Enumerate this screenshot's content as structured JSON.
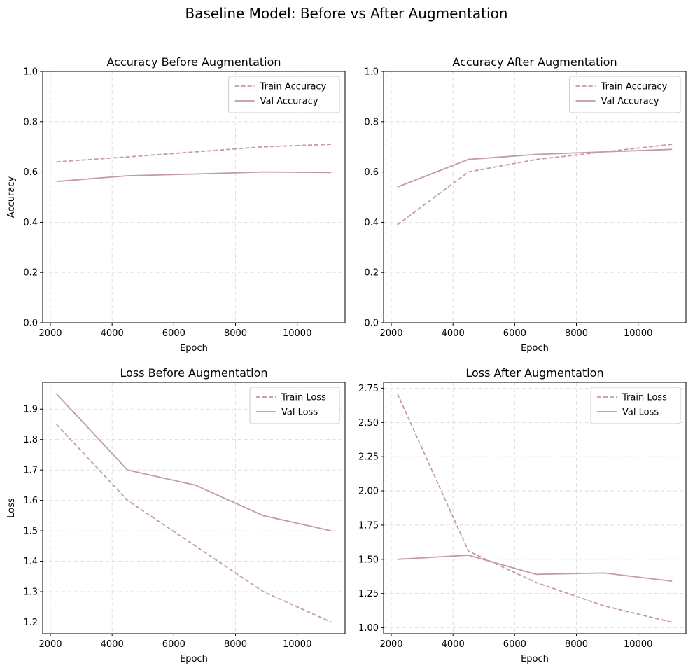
{
  "figure": {
    "title": "Baseline Model: Before vs After Augmentation"
  },
  "colors": {
    "series": "#c39aa6",
    "grid": "#d9d9d9",
    "axis": "#000000",
    "legend_border": "#cccccc"
  },
  "chart_data": [
    {
      "type": "line",
      "title": "Accuracy Before Augmentation",
      "xlabel": "Epoch",
      "ylabel": "Accuracy",
      "xlim": [
        1750,
        11550
      ],
      "ylim": [
        0,
        1
      ],
      "xticks": [
        2000,
        4000,
        6000,
        8000,
        10000
      ],
      "yticks": [
        0.0,
        0.2,
        0.4,
        0.6,
        0.8,
        1.0
      ],
      "ytick_labels": [
        "0.0",
        "0.2",
        "0.4",
        "0.6",
        "0.8",
        "1.0"
      ],
      "grid": true,
      "legend": "top-right",
      "series": [
        {
          "name": "Train Accuracy",
          "style": "dashed",
          "x": [
            2200,
            4500,
            6700,
            8900,
            11100
          ],
          "y": [
            0.64,
            0.66,
            0.68,
            0.7,
            0.71
          ]
        },
        {
          "name": "Val Accuracy",
          "style": "solid",
          "x": [
            2200,
            4500,
            6700,
            8900,
            11100
          ],
          "y": [
            0.562,
            0.585,
            0.592,
            0.6,
            0.598
          ]
        }
      ]
    },
    {
      "type": "line",
      "title": "Accuracy After Augmentation",
      "xlabel": "Epoch",
      "ylabel": "",
      "xlim": [
        1750,
        11550
      ],
      "ylim": [
        0,
        1
      ],
      "xticks": [
        2000,
        4000,
        6000,
        8000,
        10000
      ],
      "yticks": [
        0.0,
        0.2,
        0.4,
        0.6,
        0.8,
        1.0
      ],
      "ytick_labels": [
        "0.0",
        "0.2",
        "0.4",
        "0.6",
        "0.8",
        "1.0"
      ],
      "grid": true,
      "legend": "top-right",
      "series": [
        {
          "name": "Train Accuracy",
          "style": "dashed",
          "x": [
            2200,
            4500,
            6700,
            8900,
            11100
          ],
          "y": [
            0.39,
            0.6,
            0.65,
            0.68,
            0.71
          ]
        },
        {
          "name": "Val Accuracy",
          "style": "solid",
          "x": [
            2200,
            4500,
            6700,
            8900,
            11100
          ],
          "y": [
            0.54,
            0.65,
            0.67,
            0.68,
            0.69
          ]
        }
      ]
    },
    {
      "type": "line",
      "title": "Loss Before Augmentation",
      "xlabel": "Epoch",
      "ylabel": "Loss",
      "xlim": [
        1750,
        11550
      ],
      "ylim": [
        1.162,
        1.988
      ],
      "xticks": [
        2000,
        4000,
        6000,
        8000,
        10000
      ],
      "yticks": [
        1.2,
        1.3,
        1.4,
        1.5,
        1.6,
        1.7,
        1.8,
        1.9
      ],
      "ytick_labels": [
        "1.2",
        "1.3",
        "1.4",
        "1.5",
        "1.6",
        "1.7",
        "1.8",
        "1.9"
      ],
      "grid": true,
      "legend": "top-right",
      "series": [
        {
          "name": "Train Loss",
          "style": "dashed",
          "x": [
            2200,
            4500,
            6700,
            8900,
            11100
          ],
          "y": [
            1.85,
            1.6,
            1.45,
            1.3,
            1.2
          ]
        },
        {
          "name": "Val Loss",
          "style": "solid",
          "x": [
            2200,
            4500,
            6700,
            8900,
            11100
          ],
          "y": [
            1.95,
            1.7,
            1.65,
            1.55,
            1.5
          ]
        }
      ]
    },
    {
      "type": "line",
      "title": "Loss After Augmentation",
      "xlabel": "Epoch",
      "ylabel": "",
      "xlim": [
        1750,
        11550
      ],
      "ylim": [
        0.957,
        2.793
      ],
      "xticks": [
        2000,
        4000,
        6000,
        8000,
        10000
      ],
      "yticks": [
        1.0,
        1.25,
        1.5,
        1.75,
        2.0,
        2.25,
        2.5,
        2.75
      ],
      "ytick_labels": [
        "1.00",
        "1.25",
        "1.50",
        "1.75",
        "2.00",
        "2.25",
        "2.50",
        "2.75"
      ],
      "grid": true,
      "legend": "top-right",
      "series": [
        {
          "name": "Train Loss",
          "style": "dashed",
          "x": [
            2200,
            4500,
            6700,
            8900,
            11100
          ],
          "y": [
            2.71,
            1.56,
            1.33,
            1.16,
            1.04
          ]
        },
        {
          "name": "Val Loss",
          "style": "solid",
          "x": [
            2200,
            4500,
            6700,
            8900,
            11100
          ],
          "y": [
            1.5,
            1.53,
            1.39,
            1.4,
            1.34
          ]
        }
      ]
    }
  ]
}
